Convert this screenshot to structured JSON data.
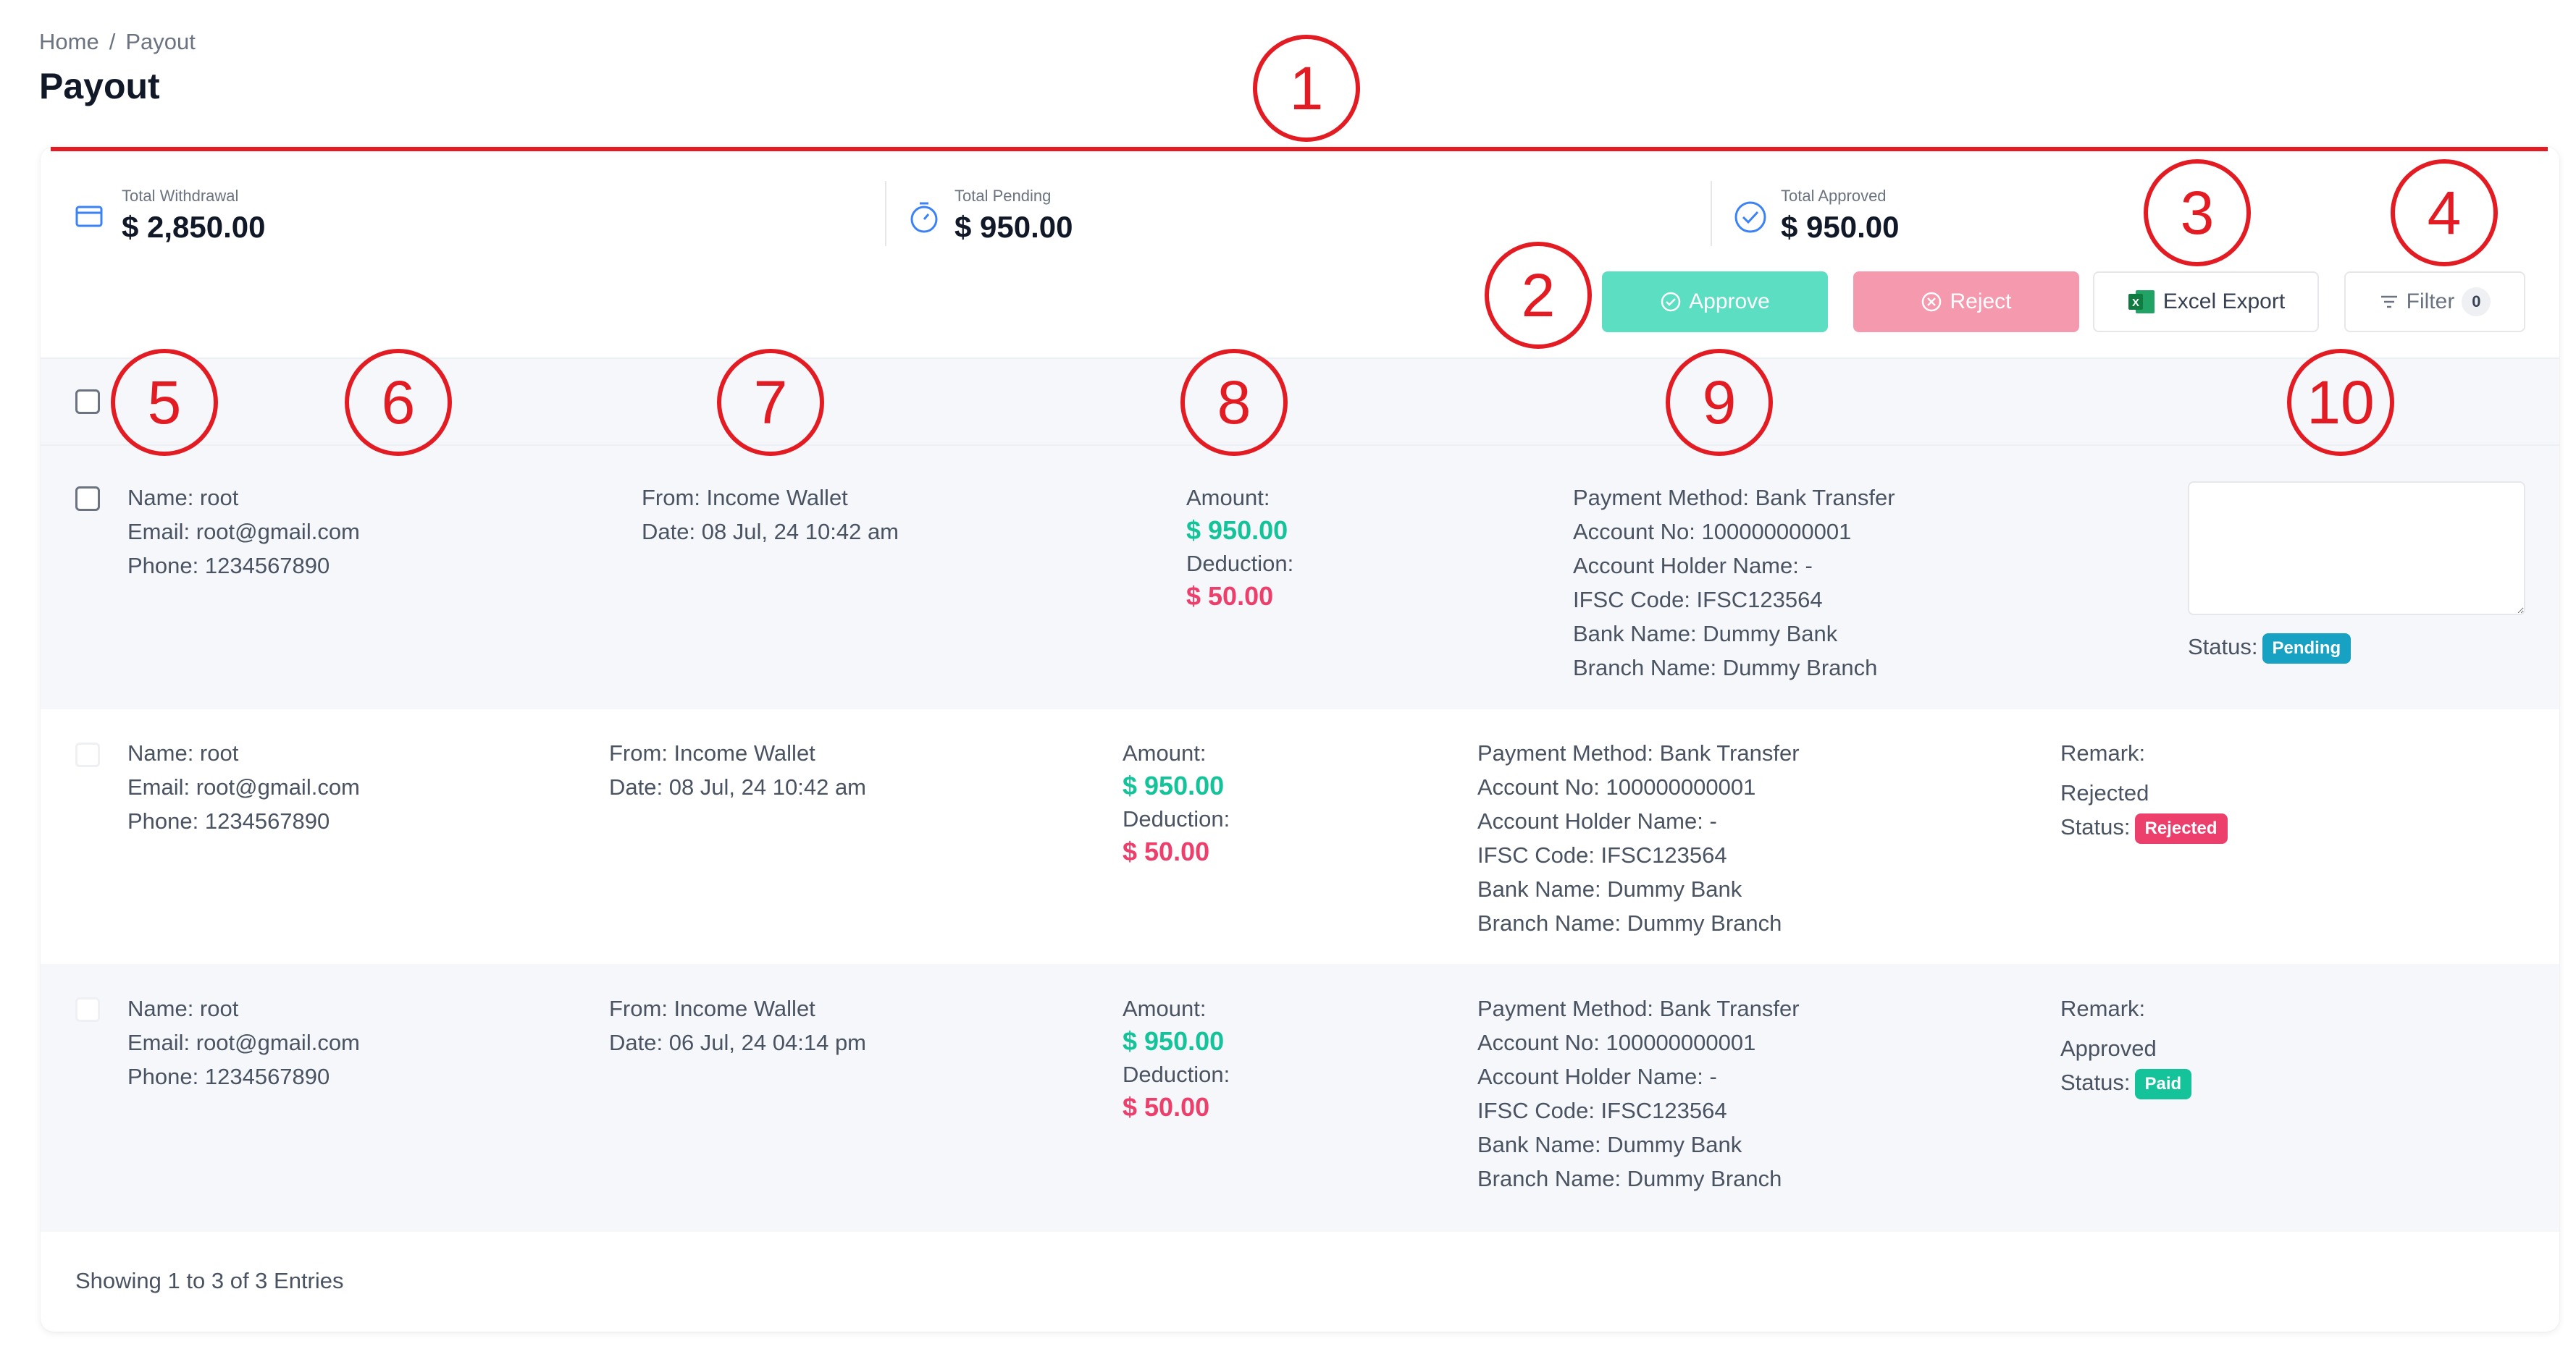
{
  "breadcrumb": {
    "home": "Home",
    "separator": "/",
    "current": "Payout"
  },
  "page_title": "Payout",
  "stats": {
    "withdrawal": {
      "label": "Total Withdrawal",
      "value": "$ 2,850.00"
    },
    "pending": {
      "label": "Total Pending",
      "value": "$ 950.00"
    },
    "approved": {
      "label": "Total Approved",
      "value": "$ 950.00"
    }
  },
  "actions": {
    "approve": "Approve",
    "reject": "Reject",
    "excel_export": "Excel Export",
    "filter": "Filter",
    "filter_count": "0"
  },
  "rows": [
    {
      "name": "Name: root",
      "email": "Email: root@gmail.com",
      "phone": "Phone: 1234567890",
      "from": "From: Income Wallet",
      "date": "Date: 08 Jul, 24 10:42 am",
      "amount_label": "Amount:",
      "amount": "$ 950.00",
      "deduction_label": "Deduction:",
      "deduction": "$ 50.00",
      "method": "Payment Method: Bank Transfer",
      "account": "Account No: 100000000001",
      "holder": "Account Holder Name: -",
      "ifsc": "IFSC Code: IFSC123564",
      "bank": "Bank Name: Dummy Bank",
      "branch": "Branch Name: Dummy Branch",
      "status_label": "Status:",
      "status": "Pending",
      "status_color": "#17a2c4"
    },
    {
      "name": "Name: root",
      "email": "Email: root@gmail.com",
      "phone": "Phone: 1234567890",
      "from": "From: Income Wallet",
      "date": "Date: 08 Jul, 24 10:42 am",
      "amount_label": "Amount:",
      "amount": "$ 950.00",
      "deduction_label": "Deduction:",
      "deduction": "$ 50.00",
      "method": "Payment Method: Bank Transfer",
      "account": "Account No: 100000000001",
      "holder": "Account Holder Name: -",
      "ifsc": "IFSC Code: IFSC123564",
      "bank": "Bank Name: Dummy Bank",
      "branch": "Branch Name: Dummy Branch",
      "remark_label": "Remark:",
      "remark": "Rejected",
      "status_label": "Status:",
      "status": "Rejected",
      "status_color": "#ec3f6b"
    },
    {
      "name": "Name: root",
      "email": "Email: root@gmail.com",
      "phone": "Phone: 1234567890",
      "from": "From: Income Wallet",
      "date": "Date: 06 Jul, 24 04:14 pm",
      "amount_label": "Amount:",
      "amount": "$ 950.00",
      "deduction_label": "Deduction:",
      "deduction": "$ 50.00",
      "method": "Payment Method: Bank Transfer",
      "account": "Account No: 100000000001",
      "holder": "Account Holder Name: -",
      "ifsc": "IFSC Code: IFSC123564",
      "bank": "Bank Name: Dummy Bank",
      "branch": "Branch Name: Dummy Branch",
      "remark_label": "Remark:",
      "remark": "Approved",
      "status_label": "Status:",
      "status": "Paid",
      "status_color": "#15c39a"
    }
  ],
  "footer": "Showing 1 to 3 of 3 Entries",
  "callouts": [
    "1",
    "2",
    "3",
    "4",
    "5",
    "6",
    "7",
    "8",
    "9",
    "10"
  ],
  "colors": {
    "callout": "#e31b23",
    "approve": "#5cdec3",
    "reject": "#f59aae",
    "green": "#15c39a",
    "red": "#ec3f6b"
  },
  "icons": [
    "wallet-icon",
    "timer-icon",
    "check-circle-icon",
    "check-circle-icon",
    "x-circle-icon",
    "excel-icon",
    "filter-icon"
  ]
}
